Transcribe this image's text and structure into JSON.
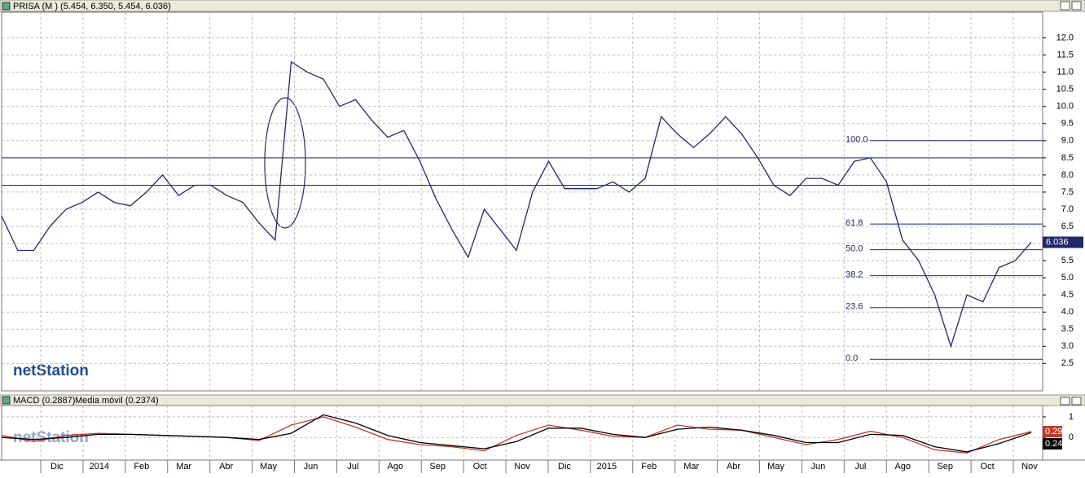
{
  "watermark": "netStation",
  "chart_data": [
    {
      "type": "line",
      "title": "PRISA (M ) (5.454, 6.350, 5.454, 6.036)",
      "ylim": [
        1.7,
        12.75
      ],
      "yticks": [
        {
          "value": 2.5,
          "label": "2.5"
        },
        {
          "value": 3,
          "label": "3.0"
        },
        {
          "value": 3.5,
          "label": "3.5"
        },
        {
          "value": 4,
          "label": "4.0"
        },
        {
          "value": 4.5,
          "label": "4.5"
        },
        {
          "value": 5,
          "label": "5.0"
        },
        {
          "value": 5.5,
          "label": "5.5"
        },
        {
          "value": 6,
          "label": "6.0"
        },
        {
          "value": 6.5,
          "label": "6.5"
        },
        {
          "value": 7,
          "label": "7.0"
        },
        {
          "value": 7.5,
          "label": "7.5"
        },
        {
          "value": 8,
          "label": "8.0"
        },
        {
          "value": 8.5,
          "label": "8.5"
        },
        {
          "value": 9,
          "label": "9.0"
        },
        {
          "value": 9.5,
          "label": "9.5"
        },
        {
          "value": 10,
          "label": "10.0"
        },
        {
          "value": 10.5,
          "label": "10.5"
        },
        {
          "value": 11,
          "label": "11.0"
        },
        {
          "value": 11.5,
          "label": "11.5"
        },
        {
          "value": 12,
          "label": "12.0"
        }
      ],
      "grid": true,
      "series": [
        {
          "color": "#1f2a6b",
          "values": [
            6.8,
            5.8,
            5.8,
            6.5,
            7.0,
            7.2,
            7.5,
            7.2,
            7.1,
            7.5,
            8.0,
            7.4,
            7.7,
            7.7,
            7.4,
            7.2,
            6.6,
            6.1,
            11.3,
            11.0,
            10.8,
            10.0,
            10.2,
            9.6,
            9.1,
            9.3,
            8.4,
            7.3,
            6.4,
            5.6,
            7.0,
            6.4,
            5.8,
            7.5,
            8.4,
            7.6,
            7.6,
            7.6,
            7.8,
            7.5,
            7.9,
            9.7,
            9.2,
            8.8,
            9.2,
            9.7,
            9.2,
            8.5,
            7.7,
            7.4,
            7.9,
            7.9,
            7.7,
            8.4,
            8.5,
            7.8,
            6.1,
            5.5,
            4.5,
            3.0,
            4.5,
            4.3,
            5.3,
            5.5,
            6.036
          ]
        }
      ],
      "hlines": [
        8.5,
        7.7
      ],
      "fib_levels": [
        {
          "value": 9.0,
          "label": "100.0"
        },
        {
          "value": 6.57,
          "label": "61.8"
        },
        {
          "value": 5.82,
          "label": "50.0"
        },
        {
          "value": 5.06,
          "label": "38.2"
        },
        {
          "value": 4.13,
          "label": "23.6"
        },
        {
          "value": 2.62,
          "label": "0.0"
        }
      ]
    },
    {
      "type": "line",
      "title": "MACD (0.2887)",
      "ylim": [
        -1.1,
        1.55
      ],
      "yticks": [
        0,
        1
      ],
      "grid": true,
      "series": [
        {
          "name": "MACD (0.2887)",
          "color": "#c0392b",
          "values": [
            0.1,
            -0.2,
            0.1,
            0.2,
            0.15,
            0.1,
            0.05,
            0.0,
            -0.15,
            0.6,
            1.0,
            0.5,
            -0.1,
            -0.35,
            -0.45,
            -0.65,
            0.1,
            0.6,
            0.35,
            0.05,
            0.0,
            0.6,
            0.4,
            0.35,
            0.0,
            -0.35,
            -0.1,
            0.3,
            0.0,
            -0.6,
            -0.75,
            -0.1,
            0.29
          ]
        },
        {
          "name": "Media móvil (0.2374)",
          "color": "#000000",
          "values": [
            0.0,
            -0.1,
            0.0,
            0.15,
            0.15,
            0.1,
            0.05,
            0.0,
            -0.1,
            0.2,
            1.1,
            0.7,
            0.1,
            -0.25,
            -0.4,
            -0.55,
            -0.2,
            0.45,
            0.45,
            0.15,
            0.0,
            0.4,
            0.5,
            0.35,
            0.1,
            -0.25,
            -0.25,
            0.15,
            0.1,
            -0.45,
            -0.7,
            -0.3,
            0.24
          ]
        }
      ],
      "time_labels": [
        "Dic",
        "2014",
        "Feb",
        "Mar",
        "Abr",
        "May",
        "Jun",
        "Jul",
        "Ago",
        "Sep",
        "Oct",
        "Nov",
        "Dic",
        "2015",
        "Feb",
        "Mar",
        "Abr",
        "May",
        "Jun",
        "Jul",
        "Ago",
        "Sep",
        "Oct",
        "Nov"
      ]
    }
  ]
}
